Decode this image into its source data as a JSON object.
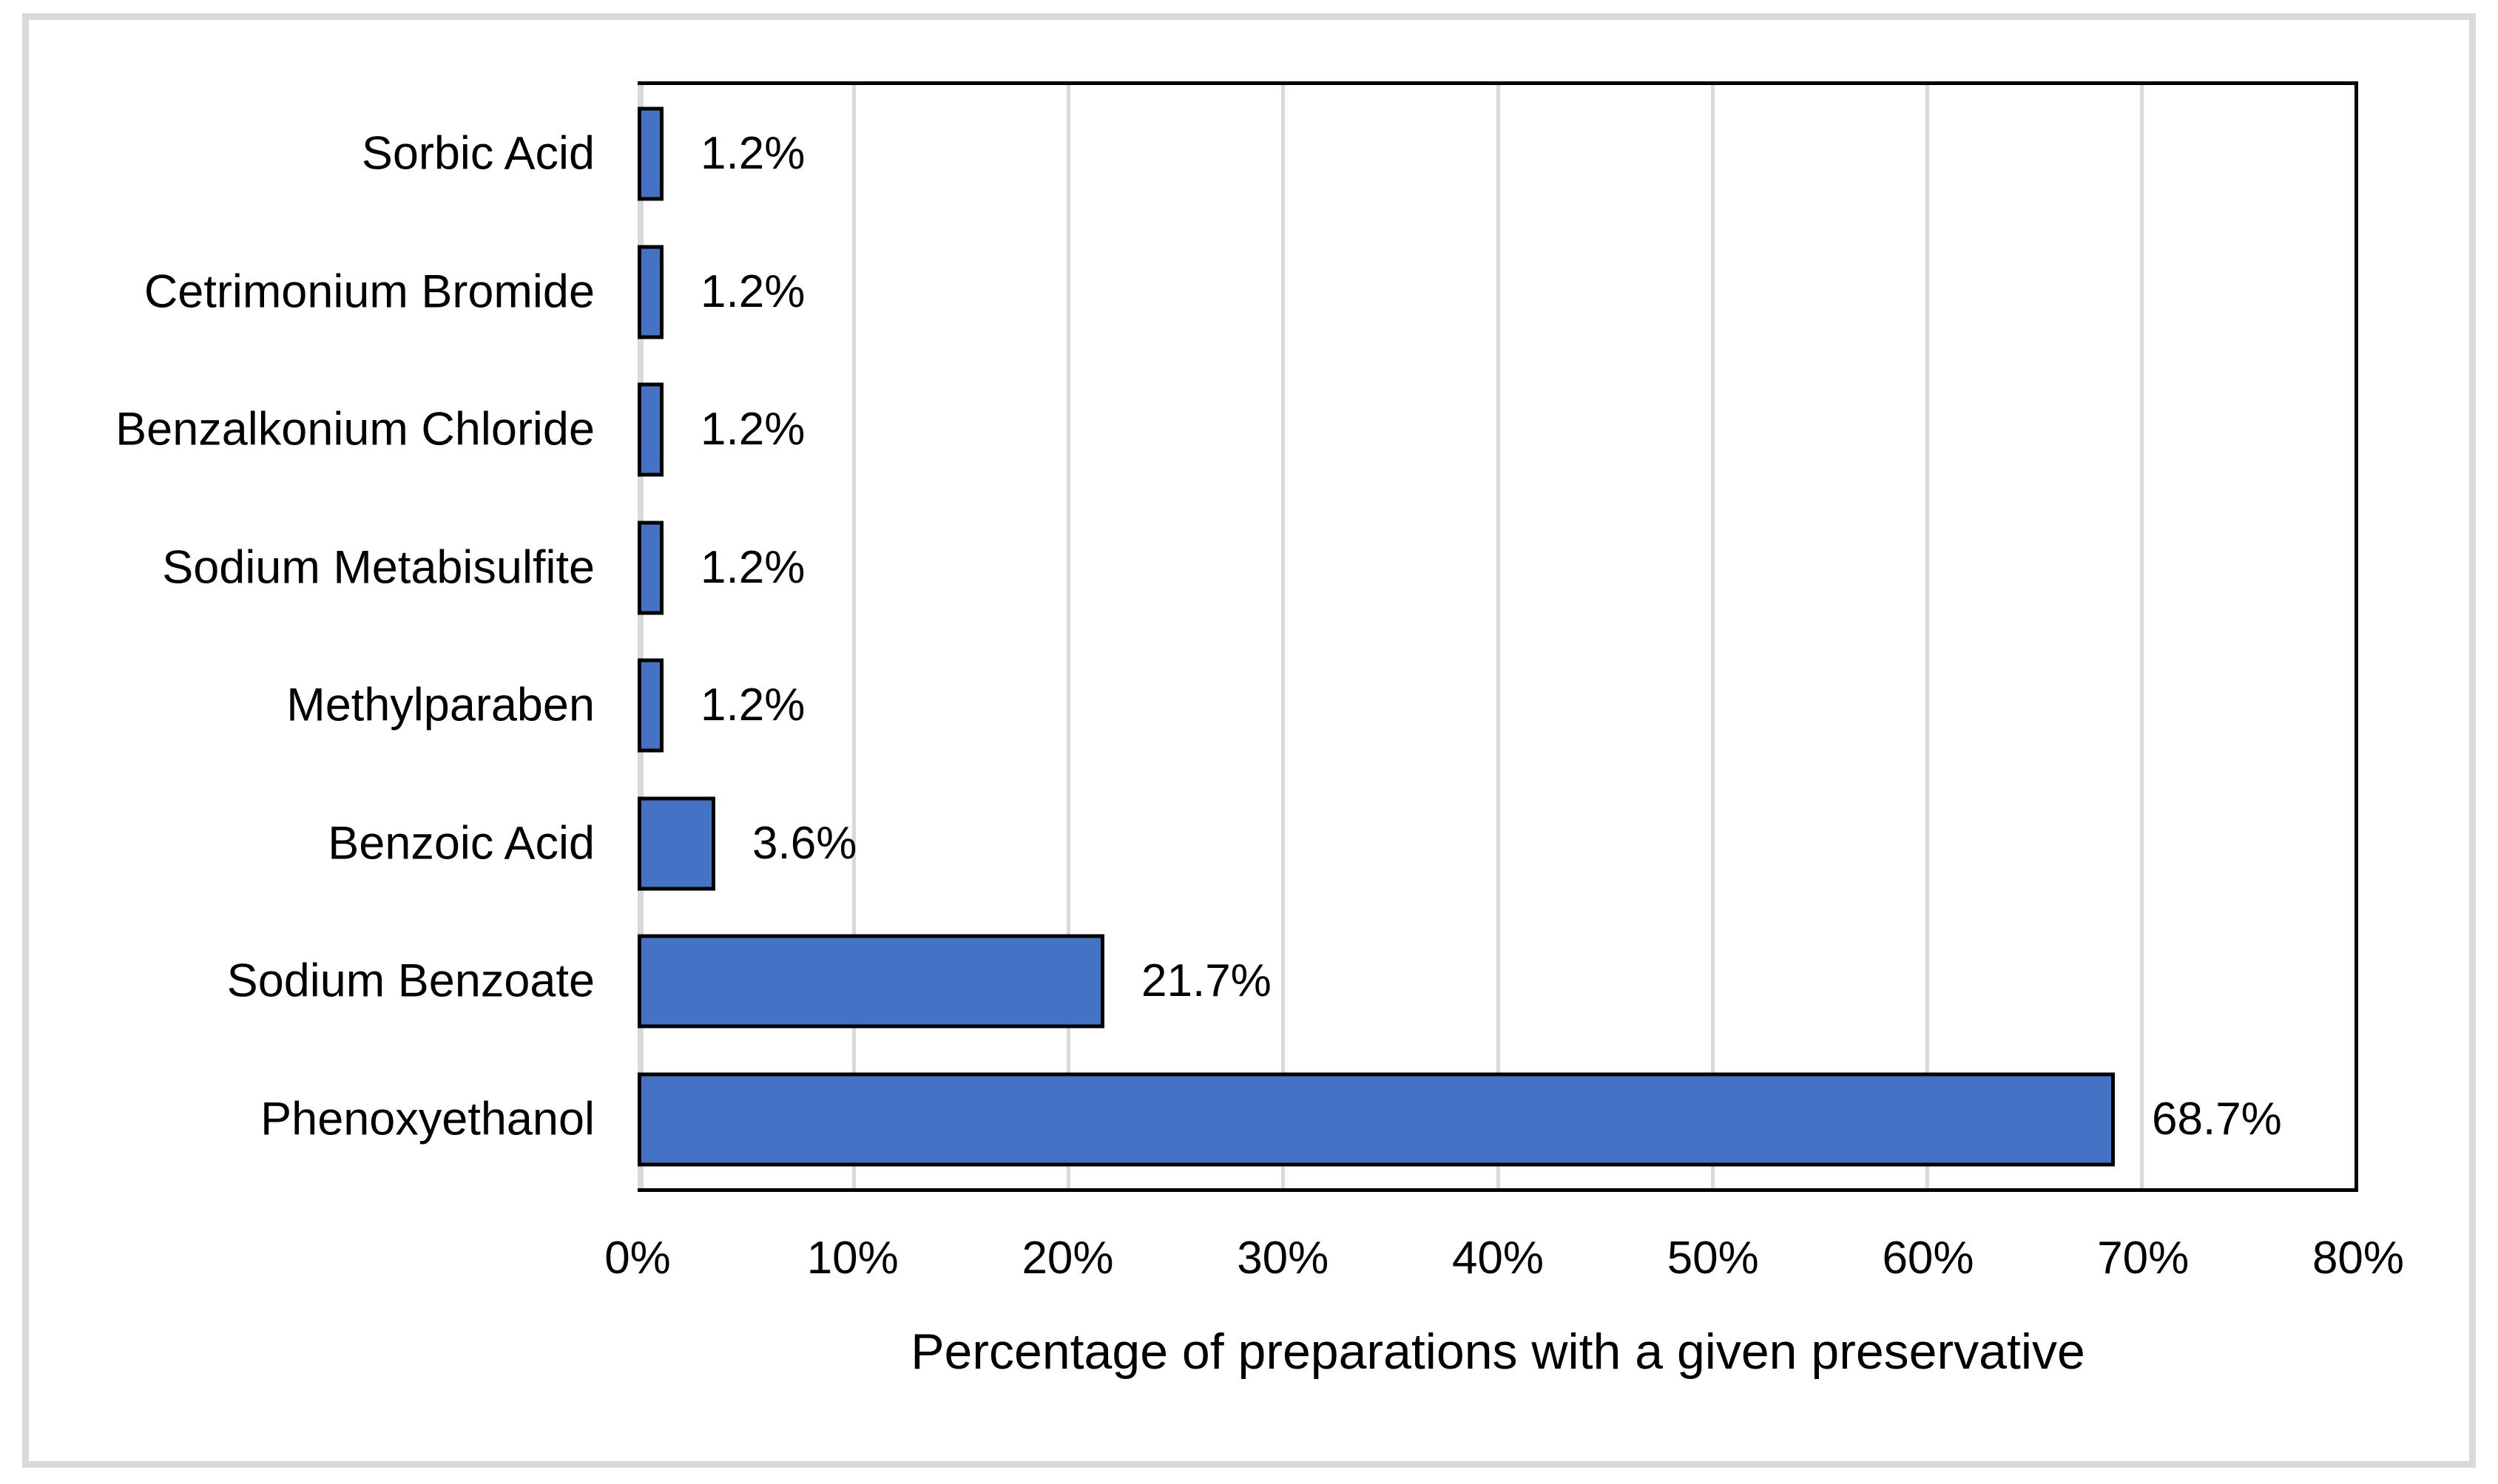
{
  "chart_data": {
    "type": "bar",
    "orientation": "horizontal",
    "categories": [
      "Sorbic Acid",
      "Cetrimonium Bromide",
      "Benzalkonium Chloride",
      "Sodium Metabisulfite",
      "Methylparaben",
      "Benzoic Acid",
      "Sodium Benzoate",
      "Phenoxyethanol"
    ],
    "values": [
      1.2,
      1.2,
      1.2,
      1.2,
      1.2,
      3.6,
      21.7,
      68.7
    ],
    "data_labels": [
      "1.2%",
      "1.2%",
      "1.2%",
      "1.2%",
      "1.2%",
      "3.6%",
      "21.7%",
      "68.7%"
    ],
    "x_ticks": [
      "0%",
      "10%",
      "20%",
      "30%",
      "40%",
      "50%",
      "60%",
      "70%",
      "80%"
    ],
    "x_tick_values": [
      0,
      10,
      20,
      30,
      40,
      50,
      60,
      70,
      80
    ],
    "xlim": [
      0,
      80
    ],
    "xlabel": "Percentage of preparations with a given preservative",
    "title": "",
    "grid": true,
    "legend": false,
    "colors": {
      "bar_fill": "#4472C4",
      "bar_border": "#000000",
      "gridline": "#D9D9D9",
      "plot_border": "#000000",
      "figure_border": "#D9D9D9",
      "text": "#000000",
      "background": "#FFFFFF"
    }
  }
}
